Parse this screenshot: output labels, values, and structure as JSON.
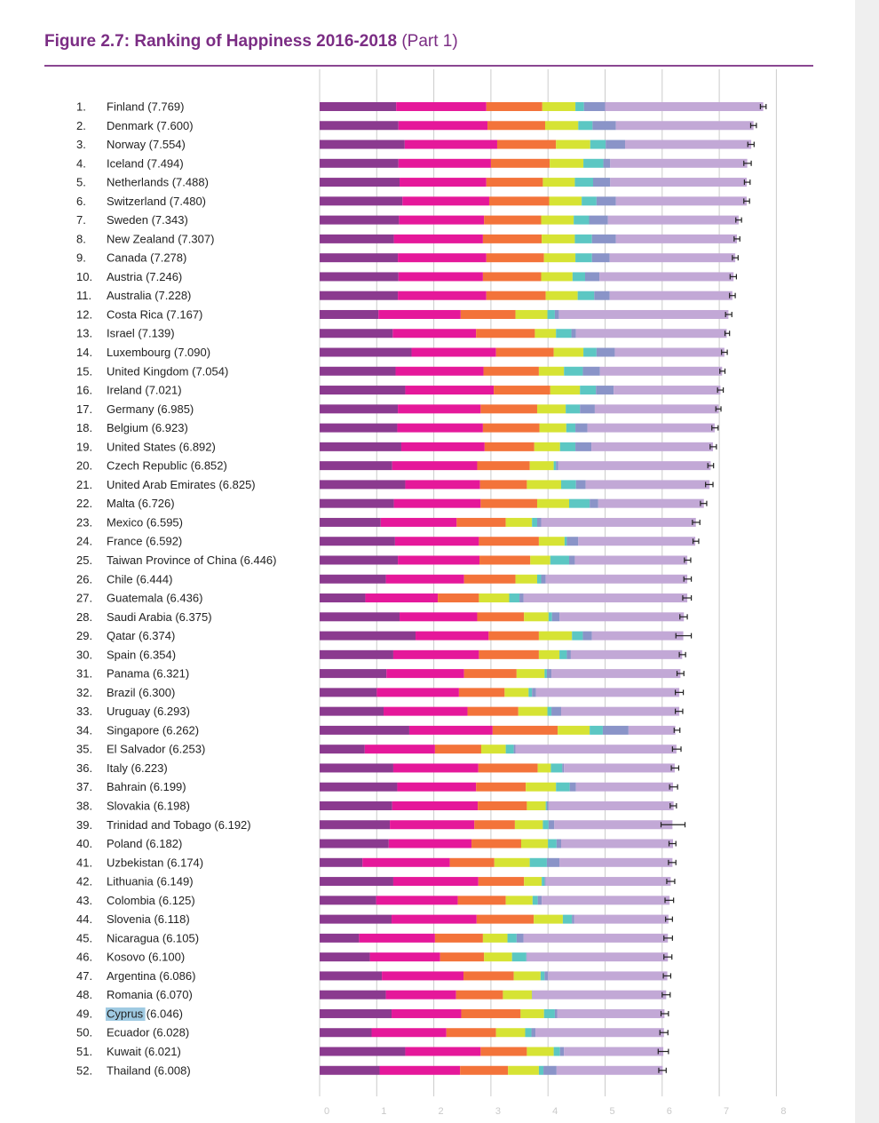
{
  "figure": {
    "title_main": "Figure 2.7: Ranking of Happiness 2016-2018",
    "title_part": "(Part 1)"
  },
  "colors": {
    "title": "#7b2d84",
    "highlight": "#7fb8d8",
    "error_bar": "#222222",
    "gridline": "#cccccc"
  },
  "chart_data": {
    "type": "bar",
    "orientation": "horizontal",
    "stacked": true,
    "title": "Figure 2.7: Ranking of Happiness 2016-2018 (Part 1)",
    "xlim": [
      0,
      8
    ],
    "x_ticks": [
      "0",
      "1",
      "2",
      "3",
      "4",
      "5",
      "6",
      "7",
      "8"
    ],
    "grid": true,
    "legend": "none",
    "highlighted_category": "Cyprus",
    "segment_colors": [
      "#8b3a8f",
      "#e5189a",
      "#f3733a",
      "#d6e334",
      "#5cc7c3",
      "#8a94c8",
      "#c2a8d6"
    ],
    "rows": [
      {
        "rank": "1.",
        "name": "Finland",
        "score": "7.769",
        "label": "Finland (7.769)",
        "value": 7.769,
        "segments": [
          1.34,
          1.58,
          0.98,
          0.58,
          0.15,
          0.37,
          2.77
        ],
        "ci": [
          7.72,
          7.82
        ]
      },
      {
        "rank": "2.",
        "name": "Denmark",
        "score": "7.600",
        "label": "Denmark (7.600)",
        "value": 7.6,
        "segments": [
          1.38,
          1.56,
          1.01,
          0.58,
          0.25,
          0.41,
          2.41
        ],
        "ci": [
          7.55,
          7.65
        ]
      },
      {
        "rank": "3.",
        "name": "Norway",
        "score": "7.554",
        "label": "Norway (7.554)",
        "value": 7.554,
        "segments": [
          1.49,
          1.62,
          1.03,
          0.6,
          0.27,
          0.34,
          2.21
        ],
        "ci": [
          7.5,
          7.61
        ]
      },
      {
        "rank": "4.",
        "name": "Iceland",
        "score": "7.494",
        "label": "Iceland (7.494)",
        "value": 7.494,
        "segments": [
          1.38,
          1.62,
          1.03,
          0.59,
          0.35,
          0.12,
          2.4
        ],
        "ci": [
          7.43,
          7.56
        ]
      },
      {
        "rank": "5.",
        "name": "Netherlands",
        "score": "7.488",
        "label": "Netherlands (7.488)",
        "value": 7.488,
        "segments": [
          1.4,
          1.52,
          0.99,
          0.56,
          0.32,
          0.3,
          2.39
        ],
        "ci": [
          7.44,
          7.54
        ]
      },
      {
        "rank": "6.",
        "name": "Switzerland",
        "score": "7.480",
        "label": "Switzerland (7.480)",
        "value": 7.48,
        "segments": [
          1.45,
          1.52,
          1.05,
          0.57,
          0.26,
          0.34,
          2.29
        ],
        "ci": [
          7.43,
          7.53
        ]
      },
      {
        "rank": "7.",
        "name": "Sweden",
        "score": "7.343",
        "label": "Sweden (7.343)",
        "value": 7.343,
        "segments": [
          1.39,
          1.49,
          1.0,
          0.57,
          0.27,
          0.33,
          2.29
        ],
        "ci": [
          7.29,
          7.39
        ]
      },
      {
        "rank": "8.",
        "name": "New Zealand",
        "score": "7.307",
        "label": "New Zealand (7.307)",
        "value": 7.307,
        "segments": [
          1.3,
          1.56,
          1.03,
          0.58,
          0.3,
          0.42,
          2.12
        ],
        "ci": [
          7.26,
          7.36
        ]
      },
      {
        "rank": "9.",
        "name": "Canada",
        "score": "7.278",
        "label": "Canada (7.278)",
        "value": 7.278,
        "segments": [
          1.37,
          1.55,
          1.01,
          0.55,
          0.29,
          0.31,
          2.2
        ],
        "ci": [
          7.23,
          7.33
        ]
      },
      {
        "rank": "10.",
        "name": "Austria",
        "score": "7.246",
        "label": "Austria (7.246)",
        "value": 7.246,
        "segments": [
          1.38,
          1.48,
          1.02,
          0.55,
          0.22,
          0.25,
          2.35
        ],
        "ci": [
          7.19,
          7.3
        ]
      },
      {
        "rank": "11.",
        "name": "Australia",
        "score": "7.228",
        "label": "Australia (7.228)",
        "value": 7.228,
        "segments": [
          1.37,
          1.55,
          1.04,
          0.56,
          0.29,
          0.27,
          2.15
        ],
        "ci": [
          7.18,
          7.28
        ]
      },
      {
        "rank": "12.",
        "name": "Costa Rica",
        "score": "7.167",
        "label": "Costa Rica (7.167)",
        "value": 7.167,
        "segments": [
          1.03,
          1.44,
          0.96,
          0.56,
          0.13,
          0.07,
          2.97
        ],
        "ci": [
          7.11,
          7.22
        ]
      },
      {
        "rank": "13.",
        "name": "Israel",
        "score": "7.139",
        "label": "Israel (7.139)",
        "value": 7.139,
        "segments": [
          1.28,
          1.46,
          1.03,
          0.37,
          0.27,
          0.08,
          2.64
        ],
        "ci": [
          7.1,
          7.18
        ]
      },
      {
        "rank": "14.",
        "name": "Luxembourg",
        "score": "7.090",
        "label": "Luxembourg (7.090)",
        "value": 7.09,
        "segments": [
          1.61,
          1.48,
          1.01,
          0.52,
          0.23,
          0.32,
          1.92
        ],
        "ci": [
          7.04,
          7.14
        ]
      },
      {
        "rank": "15.",
        "name": "United Kingdom",
        "score": "7.054",
        "label": "United Kingdom (7.054)",
        "value": 7.054,
        "segments": [
          1.33,
          1.54,
          0.97,
          0.44,
          0.33,
          0.3,
          2.14
        ],
        "ci": [
          7.01,
          7.1
        ]
      },
      {
        "rank": "16.",
        "name": "Ireland",
        "score": "7.021",
        "label": "Ireland (7.021)",
        "value": 7.021,
        "segments": [
          1.5,
          1.55,
          0.99,
          0.52,
          0.28,
          0.31,
          1.87
        ],
        "ci": [
          6.97,
          7.07
        ]
      },
      {
        "rank": "17.",
        "name": "Germany",
        "score": "6.985",
        "label": "Germany (6.985)",
        "value": 6.985,
        "segments": [
          1.37,
          1.45,
          0.99,
          0.5,
          0.25,
          0.26,
          2.17
        ],
        "ci": [
          6.94,
          7.03
        ]
      },
      {
        "rank": "18.",
        "name": "Belgium",
        "score": "6.923",
        "label": "Belgium (6.923)",
        "value": 6.923,
        "segments": [
          1.36,
          1.5,
          0.99,
          0.47,
          0.16,
          0.21,
          2.23
        ],
        "ci": [
          6.87,
          6.98
        ]
      },
      {
        "rank": "19.",
        "name": "United States",
        "score": "6.892",
        "label": "United States (6.892)",
        "value": 6.892,
        "segments": [
          1.43,
          1.46,
          0.87,
          0.45,
          0.27,
          0.28,
          2.13
        ],
        "ci": [
          6.84,
          6.95
        ]
      },
      {
        "rank": "20.",
        "name": "Czech Republic",
        "score": "6.852",
        "label": "Czech Republic (6.852)",
        "value": 6.852,
        "segments": [
          1.27,
          1.49,
          0.92,
          0.42,
          0.04,
          0.04,
          2.67
        ],
        "ci": [
          6.8,
          6.9
        ]
      },
      {
        "rank": "21.",
        "name": "United Arab Emirates",
        "score": "6.825",
        "label": "United Arab Emirates (6.825)",
        "value": 6.825,
        "segments": [
          1.5,
          1.31,
          0.82,
          0.6,
          0.26,
          0.17,
          2.17
        ],
        "ci": [
          6.76,
          6.89
        ]
      },
      {
        "rank": "22.",
        "name": "Malta",
        "score": "6.726",
        "label": "Malta (6.726)",
        "value": 6.726,
        "segments": [
          1.3,
          1.52,
          0.99,
          0.56,
          0.36,
          0.15,
          1.85
        ],
        "ci": [
          6.67,
          6.78
        ]
      },
      {
        "rank": "23.",
        "name": "Mexico",
        "score": "6.595",
        "label": "Mexico (6.595)",
        "value": 6.595,
        "segments": [
          1.07,
          1.33,
          0.86,
          0.46,
          0.09,
          0.07,
          2.71
        ],
        "ci": [
          6.53,
          6.66
        ]
      },
      {
        "rank": "24.",
        "name": "France",
        "score": "6.592",
        "label": "France (6.592)",
        "value": 6.592,
        "segments": [
          1.32,
          1.47,
          1.05,
          0.45,
          0.04,
          0.2,
          2.05
        ],
        "ci": [
          6.54,
          6.64
        ]
      },
      {
        "rank": "25.",
        "name": "Taiwan Province of China",
        "score": "6.446",
        "label": "Taiwan Province of China (6.446)",
        "value": 6.446,
        "segments": [
          1.37,
          1.43,
          0.89,
          0.35,
          0.33,
          0.1,
          1.97
        ],
        "ci": [
          6.39,
          6.5
        ]
      },
      {
        "rank": "26.",
        "name": "Chile",
        "score": "6.444",
        "label": "Chile (6.444)",
        "value": 6.444,
        "segments": [
          1.16,
          1.37,
          0.9,
          0.38,
          0.07,
          0.08,
          2.48
        ],
        "ci": [
          6.38,
          6.51
        ]
      },
      {
        "rank": "27.",
        "name": "Guatemala",
        "score": "6.436",
        "label": "Guatemala (6.436)",
        "value": 6.436,
        "segments": [
          0.8,
          1.27,
          0.72,
          0.53,
          0.18,
          0.07,
          2.87
        ],
        "ci": [
          6.36,
          6.51
        ]
      },
      {
        "rank": "28.",
        "name": "Saudi Arabia",
        "score": "6.375",
        "label": "Saudi Arabia (6.375)",
        "value": 6.375,
        "segments": [
          1.4,
          1.36,
          0.82,
          0.43,
          0.06,
          0.13,
          2.18
        ],
        "ci": [
          6.31,
          6.44
        ]
      },
      {
        "rank": "29.",
        "name": "Qatar",
        "score": "6.374",
        "label": "Qatar (6.374)",
        "value": 6.374,
        "segments": [
          1.68,
          1.28,
          0.88,
          0.58,
          0.19,
          0.16,
          1.6
        ],
        "ci": [
          6.24,
          6.51
        ]
      },
      {
        "rank": "30.",
        "name": "Spain",
        "score": "6.354",
        "label": "Spain (6.354)",
        "value": 6.354,
        "segments": [
          1.29,
          1.5,
          1.05,
          0.36,
          0.13,
          0.07,
          1.95
        ],
        "ci": [
          6.3,
          6.41
        ]
      },
      {
        "rank": "31.",
        "name": "Panama",
        "score": "6.321",
        "label": "Panama (6.321)",
        "value": 6.321,
        "segments": [
          1.17,
          1.36,
          0.92,
          0.49,
          0.04,
          0.08,
          2.26
        ],
        "ci": [
          6.26,
          6.38
        ]
      },
      {
        "rank": "32.",
        "name": "Brazil",
        "score": "6.300",
        "label": "Brazil (6.300)",
        "value": 6.3,
        "segments": [
          1.0,
          1.44,
          0.8,
          0.42,
          0.06,
          0.07,
          2.51
        ],
        "ci": [
          6.23,
          6.37
        ]
      },
      {
        "rank": "33.",
        "name": "Uruguay",
        "score": "6.293",
        "label": "Uruguay (6.293)",
        "value": 6.293,
        "segments": [
          1.12,
          1.47,
          0.89,
          0.51,
          0.07,
          0.17,
          2.07
        ],
        "ci": [
          6.23,
          6.36
        ]
      },
      {
        "rank": "34.",
        "name": "Singapore",
        "score": "6.262",
        "label": "Singapore (6.262)",
        "value": 6.262,
        "segments": [
          1.57,
          1.46,
          1.14,
          0.56,
          0.23,
          0.45,
          0.82
        ],
        "ci": [
          6.21,
          6.31
        ]
      },
      {
        "rank": "35.",
        "name": "El Salvador",
        "score": "6.253",
        "label": "El Salvador (6.253)",
        "value": 6.253,
        "segments": [
          0.79,
          1.23,
          0.81,
          0.43,
          0.14,
          0.03,
          2.82
        ],
        "ci": [
          6.18,
          6.33
        ]
      },
      {
        "rank": "36.",
        "name": "Italy",
        "score": "6.223",
        "label": "Italy (6.223)",
        "value": 6.223,
        "segments": [
          1.29,
          1.49,
          1.04,
          0.23,
          0.2,
          0.03,
          1.94
        ],
        "ci": [
          6.16,
          6.29
        ]
      },
      {
        "rank": "37.",
        "name": "Bahrain",
        "score": "6.199",
        "label": "Bahrain (6.199)",
        "value": 6.199,
        "segments": [
          1.36,
          1.38,
          0.87,
          0.53,
          0.24,
          0.11,
          1.7
        ],
        "ci": [
          6.13,
          6.27
        ]
      },
      {
        "rank": "38.",
        "name": "Slovakia",
        "score": "6.198",
        "label": "Slovakia (6.198)",
        "value": 6.198,
        "segments": [
          1.27,
          1.5,
          0.86,
          0.33,
          0.02,
          0.03,
          2.19
        ],
        "ci": [
          6.14,
          6.25
        ]
      },
      {
        "rank": "39.",
        "name": "Trinidad and Tobago",
        "score": "6.192",
        "label": "Trinidad and Tobago (6.192)",
        "value": 6.192,
        "segments": [
          1.23,
          1.48,
          0.71,
          0.49,
          0.1,
          0.1,
          2.07
        ],
        "ci": [
          5.98,
          6.4
        ]
      },
      {
        "rank": "40.",
        "name": "Poland",
        "score": "6.182",
        "label": "Poland (6.182)",
        "value": 6.182,
        "segments": [
          1.21,
          1.45,
          0.87,
          0.47,
          0.15,
          0.08,
          1.96
        ],
        "ci": [
          6.12,
          6.24
        ]
      },
      {
        "rank": "41.",
        "name": "Uzbekistan",
        "score": "6.174",
        "label": "Uzbekistan (6.174)",
        "value": 6.174,
        "segments": [
          0.75,
          1.53,
          0.78,
          0.62,
          0.3,
          0.22,
          1.98
        ],
        "ci": [
          6.11,
          6.24
        ]
      },
      {
        "rank": "42.",
        "name": "Lithuania",
        "score": "6.149",
        "label": "Lithuania (6.149)",
        "value": 6.149,
        "segments": [
          1.29,
          1.49,
          0.8,
          0.31,
          0.05,
          0.02,
          2.19
        ],
        "ci": [
          6.08,
          6.22
        ]
      },
      {
        "rank": "43.",
        "name": "Colombia",
        "score": "6.125",
        "label": "Colombia (6.125)",
        "value": 6.125,
        "segments": [
          0.99,
          1.43,
          0.84,
          0.47,
          0.09,
          0.07,
          2.24
        ],
        "ci": [
          6.05,
          6.2
        ]
      },
      {
        "rank": "44.",
        "name": "Slovenia",
        "score": "6.118",
        "label": "Slovenia (6.118)",
        "value": 6.118,
        "segments": [
          1.26,
          1.49,
          1.0,
          0.51,
          0.16,
          0.04,
          1.65
        ],
        "ci": [
          6.06,
          6.18
        ]
      },
      {
        "rank": "45.",
        "name": "Nicaragua",
        "score": "6.105",
        "label": "Nicaragua (6.105)",
        "value": 6.105,
        "segments": [
          0.69,
          1.33,
          0.84,
          0.43,
          0.16,
          0.12,
          2.53
        ],
        "ci": [
          6.03,
          6.18
        ]
      },
      {
        "rank": "46.",
        "name": "Kosovo",
        "score": "6.100",
        "label": "Kosovo (6.100)",
        "value": 6.1,
        "segments": [
          0.88,
          1.23,
          0.77,
          0.49,
          0.25,
          0.01,
          2.47
        ],
        "ci": [
          6.03,
          6.17
        ]
      },
      {
        "rank": "47.",
        "name": "Argentina",
        "score": "6.086",
        "label": "Argentina (6.086)",
        "value": 6.086,
        "segments": [
          1.09,
          1.43,
          0.88,
          0.47,
          0.07,
          0.06,
          2.09
        ],
        "ci": [
          6.02,
          6.15
        ]
      },
      {
        "rank": "48.",
        "name": "Romania",
        "score": "6.070",
        "label": "Romania (6.070)",
        "value": 6.07,
        "segments": [
          1.16,
          1.23,
          0.82,
          0.51,
          0.0,
          0.01,
          2.34
        ],
        "ci": [
          6.0,
          6.14
        ]
      },
      {
        "rank": "49.",
        "name": "Cyprus",
        "score": "6.046",
        "label": "Cyprus (6.046)",
        "value": 6.046,
        "segments": [
          1.26,
          1.22,
          1.04,
          0.41,
          0.19,
          0.04,
          1.88
        ],
        "ci": [
          5.98,
          6.11
        ]
      },
      {
        "rank": "50.",
        "name": "Ecuador",
        "score": "6.028",
        "label": "Ecuador (6.028)",
        "value": 6.028,
        "segments": [
          0.91,
          1.31,
          0.87,
          0.51,
          0.11,
          0.07,
          2.25
        ],
        "ci": [
          5.96,
          6.1
        ]
      },
      {
        "rank": "51.",
        "name": "Kuwait",
        "score": "6.021",
        "label": "Kuwait (6.021)",
        "value": 6.021,
        "segments": [
          1.5,
          1.32,
          0.81,
          0.47,
          0.11,
          0.07,
          1.74
        ],
        "ci": [
          5.93,
          6.11
        ]
      },
      {
        "rank": "52.",
        "name": "Thailand",
        "score": "6.008",
        "label": "Thailand (6.008)",
        "value": 6.008,
        "segments": [
          1.05,
          1.41,
          0.84,
          0.54,
          0.08,
          0.23,
          1.86
        ],
        "ci": [
          5.94,
          6.07
        ]
      }
    ]
  }
}
